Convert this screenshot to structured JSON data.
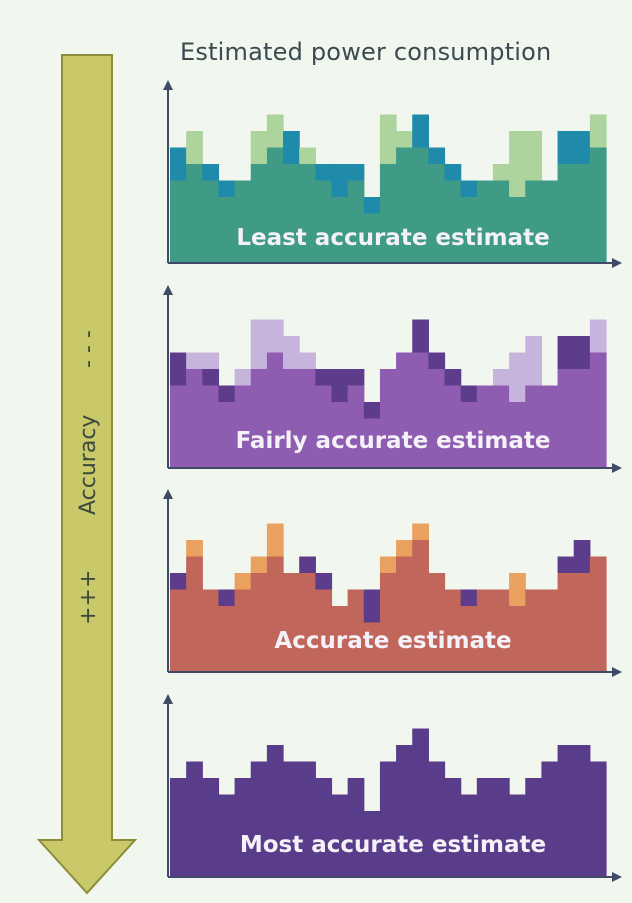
{
  "title": "Estimated power consumption",
  "accuracy": {
    "label": "Accuracy",
    "more": "+++",
    "less": "- - -"
  },
  "colors": {
    "background": "#f1f7ee",
    "arrow_fill": "#c9c96a",
    "arrow_stroke": "#8c8c3a",
    "axis": "#3f4b66"
  },
  "chart_data": [
    {
      "type": "bar",
      "label": "Least accurate estimate",
      "base_color": "#3f9a86",
      "series": [
        {
          "name": "base",
          "color": "#3f9a86",
          "values": [
            5,
            6,
            5,
            4,
            5,
            6,
            7,
            6,
            6,
            5,
            4,
            5,
            3,
            6,
            7,
            7,
            6,
            5,
            4,
            5,
            5,
            4,
            5,
            5,
            6,
            6,
            7
          ]
        },
        {
          "name": "dark",
          "color": "#1f8aaa",
          "values": [
            2,
            0,
            1,
            1,
            0,
            0,
            0,
            2,
            0,
            1,
            2,
            1,
            1,
            0,
            0,
            2,
            1,
            1,
            1,
            0,
            0,
            0,
            0,
            0,
            2,
            2,
            0
          ]
        },
        {
          "name": "light",
          "color": "#aed49d",
          "values": [
            0,
            2,
            0,
            0,
            0,
            2,
            2,
            0,
            1,
            0,
            0,
            0,
            0,
            3,
            1,
            0,
            0,
            0,
            0,
            0,
            1,
            4,
            3,
            0,
            0,
            0,
            2
          ]
        }
      ]
    },
    {
      "type": "bar",
      "label": "Fairly accurate estimate",
      "base_color": "#8e5cb0",
      "series": [
        {
          "name": "base",
          "color": "#8e5cb0",
          "values": [
            5,
            6,
            5,
            4,
            5,
            6,
            7,
            6,
            6,
            5,
            4,
            5,
            3,
            6,
            7,
            7,
            6,
            5,
            4,
            5,
            5,
            4,
            5,
            5,
            6,
            6,
            7
          ]
        },
        {
          "name": "dark",
          "color": "#5d3c8c",
          "values": [
            2,
            0,
            1,
            1,
            0,
            0,
            0,
            0,
            0,
            1,
            2,
            1,
            1,
            0,
            0,
            2,
            1,
            1,
            1,
            0,
            0,
            0,
            0,
            0,
            2,
            2,
            0
          ]
        },
        {
          "name": "light",
          "color": "#c7b4dc",
          "values": [
            0,
            1,
            1,
            0,
            1,
            3,
            2,
            2,
            1,
            0,
            0,
            0,
            0,
            0,
            0,
            0,
            0,
            0,
            0,
            0,
            1,
            3,
            3,
            0,
            0,
            0,
            2
          ]
        }
      ]
    },
    {
      "type": "bar",
      "label": "Accurate estimate",
      "base_color": "#c0665a",
      "series": [
        {
          "name": "base",
          "color": "#c0665a",
          "values": [
            5,
            7,
            5,
            4,
            5,
            6,
            7,
            6,
            6,
            5,
            4,
            5,
            3,
            6,
            7,
            8,
            6,
            5,
            4,
            5,
            5,
            4,
            5,
            5,
            6,
            6,
            7
          ]
        },
        {
          "name": "dark",
          "color": "#5d3c8c",
          "values": [
            1,
            0,
            0,
            1,
            0,
            0,
            0,
            0,
            1,
            1,
            0,
            0,
            2,
            0,
            0,
            0,
            0,
            0,
            1,
            0,
            0,
            0,
            0,
            0,
            1,
            2,
            0
          ]
        },
        {
          "name": "light",
          "color": "#eaa15f",
          "values": [
            0,
            1,
            0,
            0,
            1,
            1,
            2,
            0,
            0,
            0,
            0,
            0,
            0,
            1,
            1,
            1,
            0,
            0,
            0,
            0,
            0,
            2,
            0,
            0,
            0,
            0,
            0
          ]
        }
      ]
    },
    {
      "type": "bar",
      "label": "Most accurate estimate",
      "base_color": "#5a3d8a",
      "series": [
        {
          "name": "base",
          "color": "#5a3d8a",
          "values": [
            6,
            7,
            6,
            5,
            6,
            7,
            8,
            7,
            7,
            6,
            5,
            6,
            4,
            7,
            8,
            9,
            7,
            6,
            5,
            6,
            6,
            5,
            6,
            7,
            8,
            8,
            7
          ]
        }
      ]
    }
  ]
}
